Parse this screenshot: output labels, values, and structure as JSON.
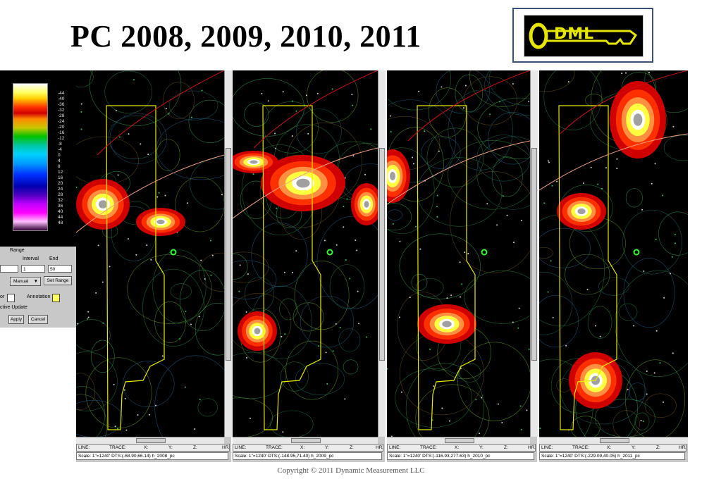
{
  "slide": {
    "title": "PC 2008, 2009, 2010, 2011",
    "copyright": "Copyright © 2011  Dynamic Measurement LLC"
  },
  "logo": {
    "text": "DML",
    "icon": "key-icon",
    "accent": "#e6e600"
  },
  "colorbar": {
    "labels": [
      "-44",
      "-40",
      "-36",
      "-32",
      "-28",
      "-24",
      "-20",
      "-16",
      "-12",
      "-8",
      "-4",
      "0",
      "4",
      "8",
      "12",
      "16",
      "20",
      "24",
      "28",
      "32",
      "36",
      "40",
      "44",
      "48"
    ]
  },
  "range_panel": {
    "title": "Range",
    "interval_label": "Interval",
    "end_label": "End",
    "interval_value": "1",
    "end_value": "50",
    "mode_value": "Manual",
    "set_range_label": "Set Range",
    "color_label": "or",
    "annotation_label": "Annotation",
    "active_update_label": "ctive Update",
    "apply_label": "Apply",
    "cancel_label": "Cancel"
  },
  "status_headers": {
    "line": "LINE:",
    "trace": "TRACE:",
    "x": "X:",
    "y": "Y:",
    "z": "Z:",
    "hrz": "HRZ"
  },
  "maps": [
    {
      "id": "2008",
      "scale_text": "Scale: 1\"=1240'  DTS:(-68.90,66.14)  h_2008_pc"
    },
    {
      "id": "2009",
      "scale_text": "Scale: 1\"=1240'  DTS:(-148.95,71.40)  h_2009_pc"
    },
    {
      "id": "2010",
      "scale_text": "Scale: 1\"=1240'  DTS:(-116.93,277.63)  h_2010_pc"
    },
    {
      "id": "2011",
      "scale_text": "Scale: 1\"=1240'  DTS:(-229.09,40.05)  h_2011_pc"
    }
  ],
  "colors": {
    "outline": "#e8e800",
    "fault": "#d01010",
    "seismic_line": "#f0a080"
  }
}
